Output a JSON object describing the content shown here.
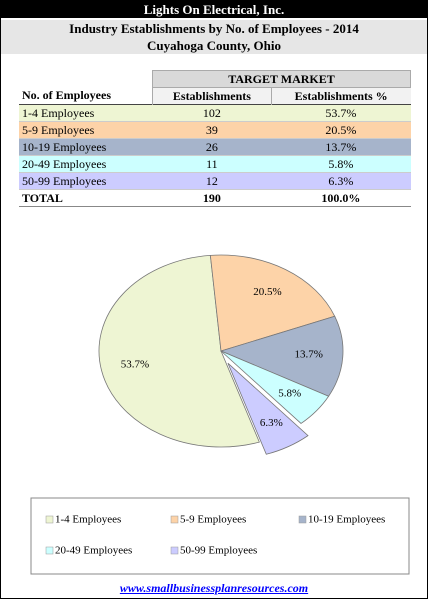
{
  "header": {
    "company": "Lights On Electrical, Inc.",
    "title": "Industry Establishments by No. of Employees - 2014",
    "location": "Cuyahoga County,  Ohio"
  },
  "table": {
    "group_header": "TARGET MARKET",
    "columns": [
      "No. of Employees",
      "Establishments",
      "Establishments %"
    ],
    "rows": [
      [
        "1-4 Employees",
        "102",
        "53.7%"
      ],
      [
        "5-9 Employees",
        "39",
        "20.5%"
      ],
      [
        "10-19 Employees",
        "26",
        "13.7%"
      ],
      [
        "20-49 Employees",
        "11",
        "5.8%"
      ],
      [
        "50-99 Employees",
        "12",
        "6.3%"
      ]
    ],
    "total": [
      "TOTAL",
      "190",
      "100.0%"
    ]
  },
  "chart_data": {
    "type": "pie",
    "categories": [
      "1-4 Employees",
      "5-9 Employees",
      "10-19 Employees",
      "20-49 Employees",
      "50-99 Employees"
    ],
    "values": [
      53.7,
      20.5,
      13.7,
      5.8,
      6.3
    ],
    "value_labels": [
      "53.7%",
      "20.5%",
      "13.7%",
      "5.8%",
      "6.3%"
    ],
    "colors": [
      "#eef5d3",
      "#fdd3a8",
      "#a6b4cb",
      "#ccffff",
      "#ccccff"
    ],
    "legend": "bottom"
  },
  "footer": {
    "link": "www.smallbusinessplanresources.com"
  }
}
